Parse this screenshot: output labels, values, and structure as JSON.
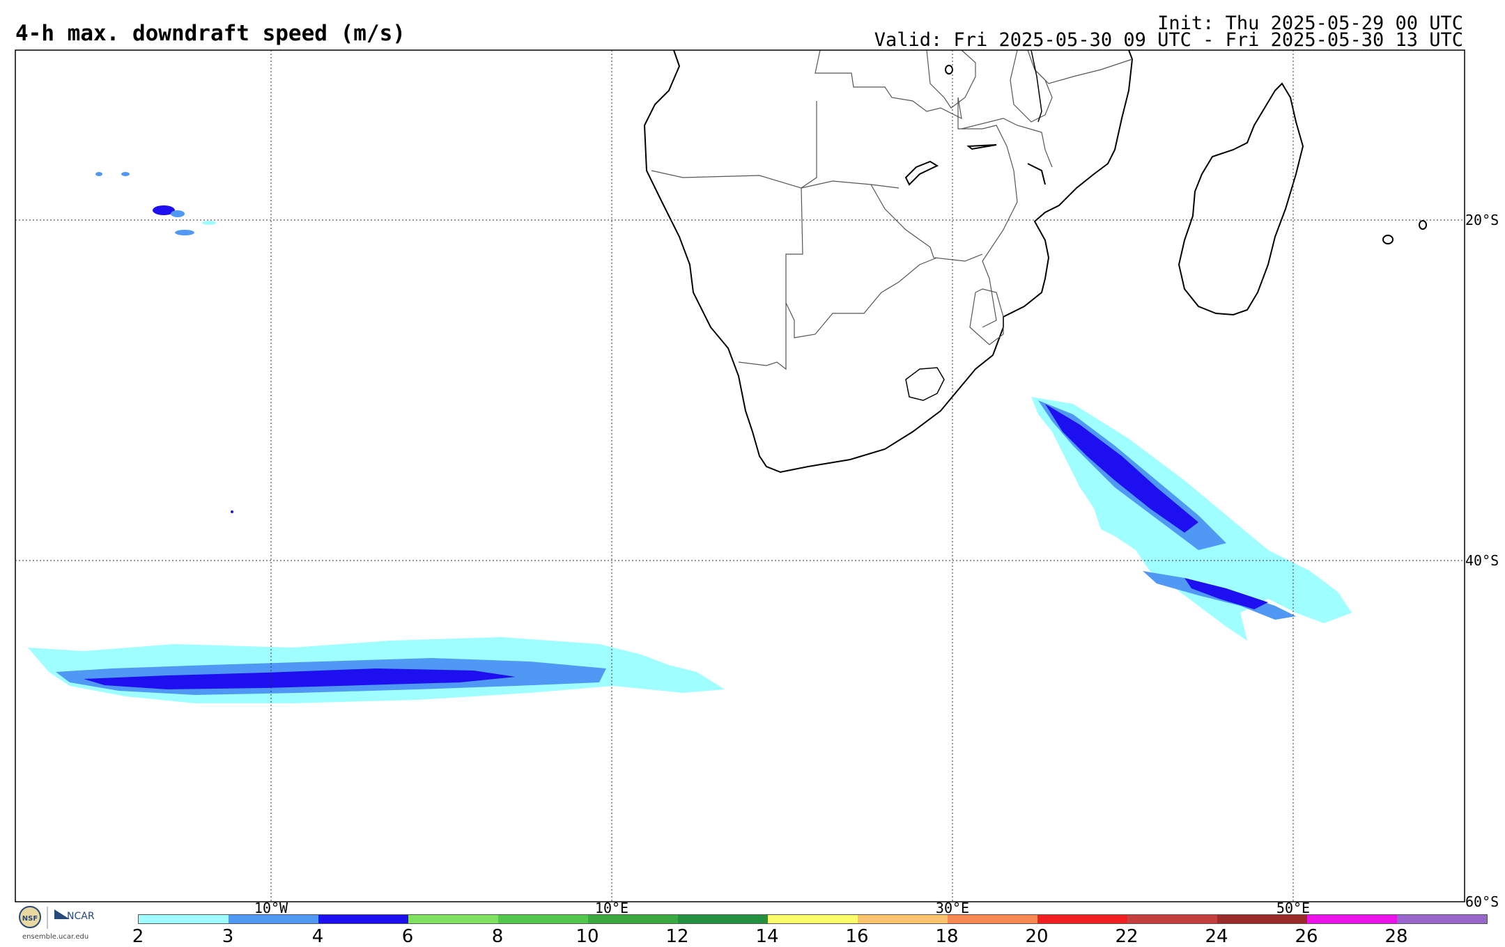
{
  "header": {
    "title": "4-h max. downdraft speed (m/s)",
    "init": "Init: Thu 2025-05-29 00 UTC",
    "valid": "Valid: Fri 2025-05-30 09 UTC - Fri 2025-05-30 13 UTC"
  },
  "axes": {
    "lon_labels": [
      "10°W",
      "10°E",
      "30°E",
      "50°E"
    ],
    "lat_labels": [
      "20°S",
      "40°S",
      "60°S"
    ]
  },
  "colorbar": {
    "ticks": [
      "2",
      "3",
      "4",
      "6",
      "8",
      "10",
      "12",
      "14",
      "16",
      "18",
      "20",
      "22",
      "24",
      "26",
      "28"
    ],
    "colors": [
      "#9ffeff",
      "#4f98f4",
      "#1d0ff0",
      "#7ee160",
      "#52c84a",
      "#3aaa40",
      "#23913f",
      "#fdfc6a",
      "#fbc36d",
      "#f88952",
      "#f12020",
      "#c63e3e",
      "#9b2b2b",
      "#ea13ea",
      "#9865cd"
    ]
  },
  "logo": {
    "org1": "NSF",
    "org2": "NCAR",
    "url": "ensemble.ucar.edu"
  }
}
